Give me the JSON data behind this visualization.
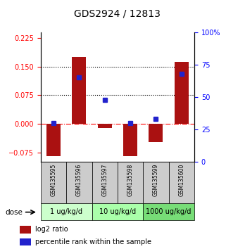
{
  "title": "GDS2924 / 12813",
  "samples": [
    "GSM135595",
    "GSM135596",
    "GSM135597",
    "GSM135598",
    "GSM135599",
    "GSM135600"
  ],
  "log2_ratio": [
    -0.085,
    0.175,
    -0.012,
    -0.085,
    -0.048,
    0.163
  ],
  "percentile_rank": [
    30,
    65,
    48,
    30,
    33,
    68
  ],
  "doses": [
    {
      "label": "1 ug/kg/d",
      "samples": [
        0,
        1
      ],
      "color": "#ccffcc"
    },
    {
      "label": "10 ug/kg/d",
      "samples": [
        2,
        3
      ],
      "color": "#aaffaa"
    },
    {
      "label": "1000 ug/kg/d",
      "samples": [
        4,
        5
      ],
      "color": "#77dd77"
    }
  ],
  "ylim_left": [
    -0.1,
    0.24
  ],
  "ylim_right": [
    0,
    100
  ],
  "yticks_left": [
    -0.075,
    0,
    0.075,
    0.15,
    0.225
  ],
  "yticks_right": [
    0,
    25,
    50,
    75,
    100
  ],
  "hlines_dotted": [
    0.075,
    0.15
  ],
  "hline_dash": 0,
  "bar_color": "#aa1111",
  "dot_color": "#2222cc",
  "bg_color": "#cccccc",
  "bar_width": 0.55
}
